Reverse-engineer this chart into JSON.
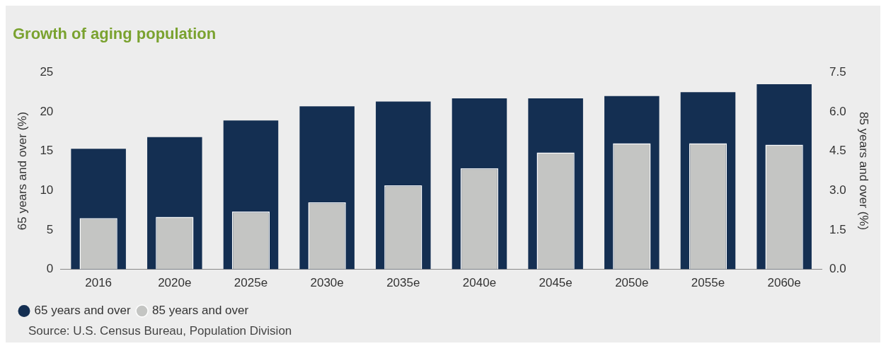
{
  "chart_data": {
    "type": "bar",
    "title": "Growth of aging population",
    "ylabel": "65 years and over (%)",
    "y2label": "85 years and over (%)",
    "categories": [
      "2016",
      "2020e",
      "2025e",
      "2030e",
      "2035e",
      "2040e",
      "2045e",
      "2050e",
      "2055e",
      "2060e"
    ],
    "series": [
      {
        "name": "65 years and over",
        "color": "#142f52",
        "values": [
          15.3,
          16.8,
          18.9,
          20.7,
          21.3,
          21.7,
          21.7,
          22.0,
          22.5,
          23.5
        ]
      },
      {
        "name": "85 years and over",
        "color": "#c4c5c3",
        "axis": "y2",
        "values": [
          1.95,
          2.0,
          2.2,
          2.55,
          3.2,
          3.85,
          4.45,
          4.8,
          4.8,
          4.75
        ]
      }
    ],
    "ylim": [
      0,
      25
    ],
    "yticks": [
      0,
      5,
      10,
      15,
      20,
      25
    ],
    "y2lim": [
      0,
      7.5
    ],
    "y2ticks": [
      {
        "value": 0,
        "label": "0.0"
      },
      1.5,
      {
        "value": 3,
        "label": "3.0"
      },
      4.5,
      {
        "value": 6,
        "label": "6.0"
      },
      7.5
    ],
    "grid": false,
    "legend": "bottom left",
    "annotations": [
      "Source: U.S. Census Bureau, Population Division"
    ]
  }
}
